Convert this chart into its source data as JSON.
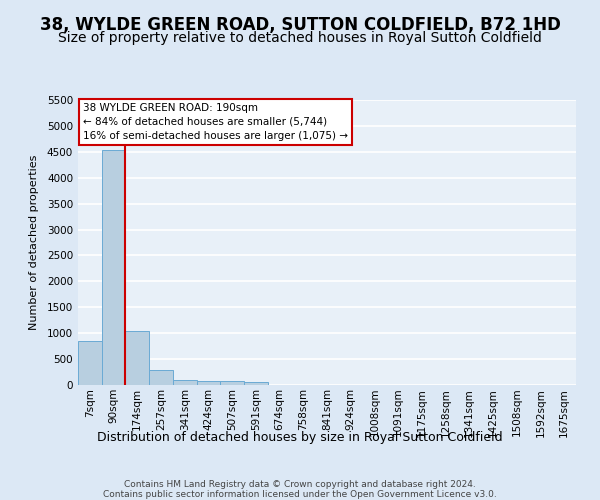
{
  "title": "38, WYLDE GREEN ROAD, SUTTON COLDFIELD, B72 1HD",
  "subtitle": "Size of property relative to detached houses in Royal Sutton Coldfield",
  "xlabel": "Distribution of detached houses by size in Royal Sutton Coldfield",
  "ylabel": "Number of detached properties",
  "footer_line1": "Contains HM Land Registry data © Crown copyright and database right 2024.",
  "footer_line2": "Contains public sector information licensed under the Open Government Licence v3.0.",
  "bins": [
    "7sqm",
    "90sqm",
    "174sqm",
    "257sqm",
    "341sqm",
    "424sqm",
    "507sqm",
    "591sqm",
    "674sqm",
    "758sqm",
    "841sqm",
    "924sqm",
    "1008sqm",
    "1091sqm",
    "1175sqm",
    "1258sqm",
    "1341sqm",
    "1425sqm",
    "1508sqm",
    "1592sqm",
    "1675sqm"
  ],
  "bar_values": [
    850,
    4540,
    1050,
    280,
    90,
    80,
    70,
    50,
    0,
    0,
    0,
    0,
    0,
    0,
    0,
    0,
    0,
    0,
    0,
    0,
    0
  ],
  "bar_color": "#b8cfe0",
  "bar_edge_color": "#6aaad4",
  "vline_color": "#cc0000",
  "annotation_text": "38 WYLDE GREEN ROAD: 190sqm\n← 84% of detached houses are smaller (5,744)\n16% of semi-detached houses are larger (1,075) →",
  "annotation_box_facecolor": "#ffffff",
  "annotation_box_edgecolor": "#cc0000",
  "ylim_max": 5500,
  "yticks": [
    0,
    500,
    1000,
    1500,
    2000,
    2500,
    3000,
    3500,
    4000,
    4500,
    5000,
    5500
  ],
  "bg_color": "#dce8f5",
  "plot_bg_color": "#e8f0f8",
  "grid_color": "#ffffff",
  "title_fontsize": 12,
  "subtitle_fontsize": 10,
  "ylabel_fontsize": 8,
  "xlabel_fontsize": 9,
  "tick_fontsize": 7.5,
  "footer_fontsize": 6.5,
  "annotation_fontsize": 7.5,
  "vline_x": 1.5
}
